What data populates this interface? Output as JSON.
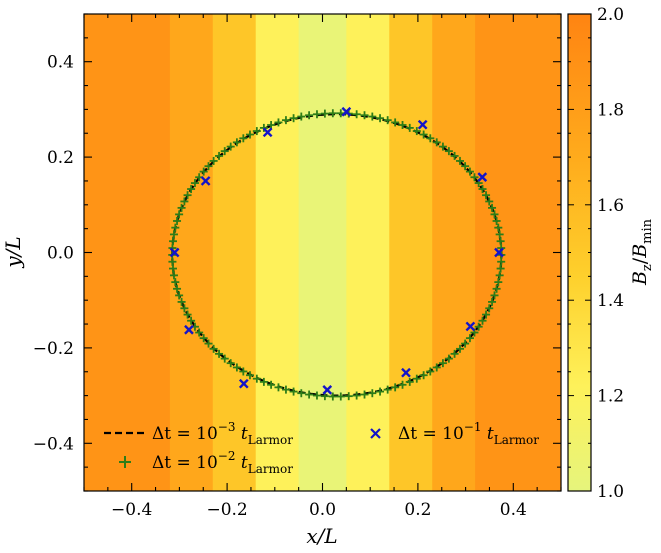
{
  "chart_data": {
    "type": "scatter",
    "title": "",
    "xlabel": "x/L",
    "ylabel": "y/L",
    "xlim": [
      -0.5,
      0.5
    ],
    "ylim": [
      -0.5,
      0.5
    ],
    "xticks": [
      -0.4,
      -0.2,
      0.0,
      0.2,
      0.4
    ],
    "yticks": [
      -0.4,
      -0.2,
      0.0,
      0.2,
      0.4
    ],
    "xtick_labels": [
      "−0.4",
      "−0.2",
      "0.0",
      "0.2",
      "0.4"
    ],
    "ytick_labels": [
      "−0.4",
      "−0.2",
      "0.0",
      "0.2",
      "0.4"
    ],
    "grid": false,
    "legend_position": "bottom",
    "background_field": {
      "name": "Bz/Bmin",
      "colorbar_label": "B_z/B_min",
      "colorbar_range": [
        1.0,
        2.0
      ],
      "colorbar_ticks": [
        1.0,
        1.2,
        1.4,
        1.6,
        1.8,
        2.0
      ],
      "colorbar_tick_labels": [
        "1.0",
        "1.2",
        "1.4",
        "1.6",
        "1.8",
        "2.0"
      ],
      "bands": [
        {
          "x0": -0.5,
          "x1": -0.32,
          "value": 1.88
        },
        {
          "x0": -0.32,
          "x1": -0.23,
          "value": 1.73
        },
        {
          "x0": -0.23,
          "x1": -0.14,
          "value": 1.52
        },
        {
          "x0": -0.14,
          "x1": -0.05,
          "value": 1.22
        },
        {
          "x0": -0.05,
          "x1": 0.05,
          "value": 1.03
        },
        {
          "x0": 0.05,
          "x1": 0.14,
          "value": 1.22
        },
        {
          "x0": 0.14,
          "x1": 0.23,
          "value": 1.52
        },
        {
          "x0": 0.23,
          "x1": 0.32,
          "value": 1.73
        },
        {
          "x0": 0.32,
          "x1": 0.5,
          "value": 1.88
        }
      ]
    },
    "series": [
      {
        "name": "dt=1e-3 t_Larmor",
        "style": "dashed-line",
        "color": "#000000",
        "ellipse": {
          "cx": 0.03,
          "cy": -0.005,
          "rx": 0.345,
          "ry": 0.295
        }
      },
      {
        "name": "dt=1e-2 t_Larmor",
        "style": "plus-markers",
        "color": "#2e7d18",
        "ellipse": {
          "cx": 0.03,
          "cy": -0.005,
          "rx": 0.345,
          "ry": 0.297
        },
        "n_points": 130
      },
      {
        "name": "dt=1e-1 t_Larmor",
        "style": "x-markers",
        "color": "#1414c8",
        "points": [
          [
            0.05,
            0.295
          ],
          [
            0.21,
            0.268
          ],
          [
            0.335,
            0.158
          ],
          [
            0.37,
            0.0
          ],
          [
            0.31,
            -0.155
          ],
          [
            0.175,
            -0.252
          ],
          [
            0.01,
            -0.288
          ],
          [
            -0.165,
            -0.275
          ],
          [
            -0.28,
            -0.162
          ],
          [
            -0.31,
            0.0
          ],
          [
            -0.245,
            0.15
          ],
          [
            -0.115,
            0.252
          ]
        ]
      }
    ],
    "legend": [
      {
        "symbol": "dashed-line",
        "pre": "Δt = 10",
        "exp": "−3",
        "sym": "t",
        "sub": "Larmor"
      },
      {
        "symbol": "plus",
        "pre": "Δt = 10",
        "exp": "−2",
        "sym": "t",
        "sub": "Larmor"
      },
      {
        "symbol": "x",
        "pre": "Δt = 10",
        "exp": "−1",
        "sym": "t",
        "sub": "Larmor"
      }
    ],
    "colors": {
      "cmap_low": "#e6f47c",
      "cmap_mid": "#fee43e",
      "cmap_high": "#ff8c14",
      "line": "#000000",
      "plus": "#2e7d18",
      "cross": "#1414c8"
    }
  }
}
